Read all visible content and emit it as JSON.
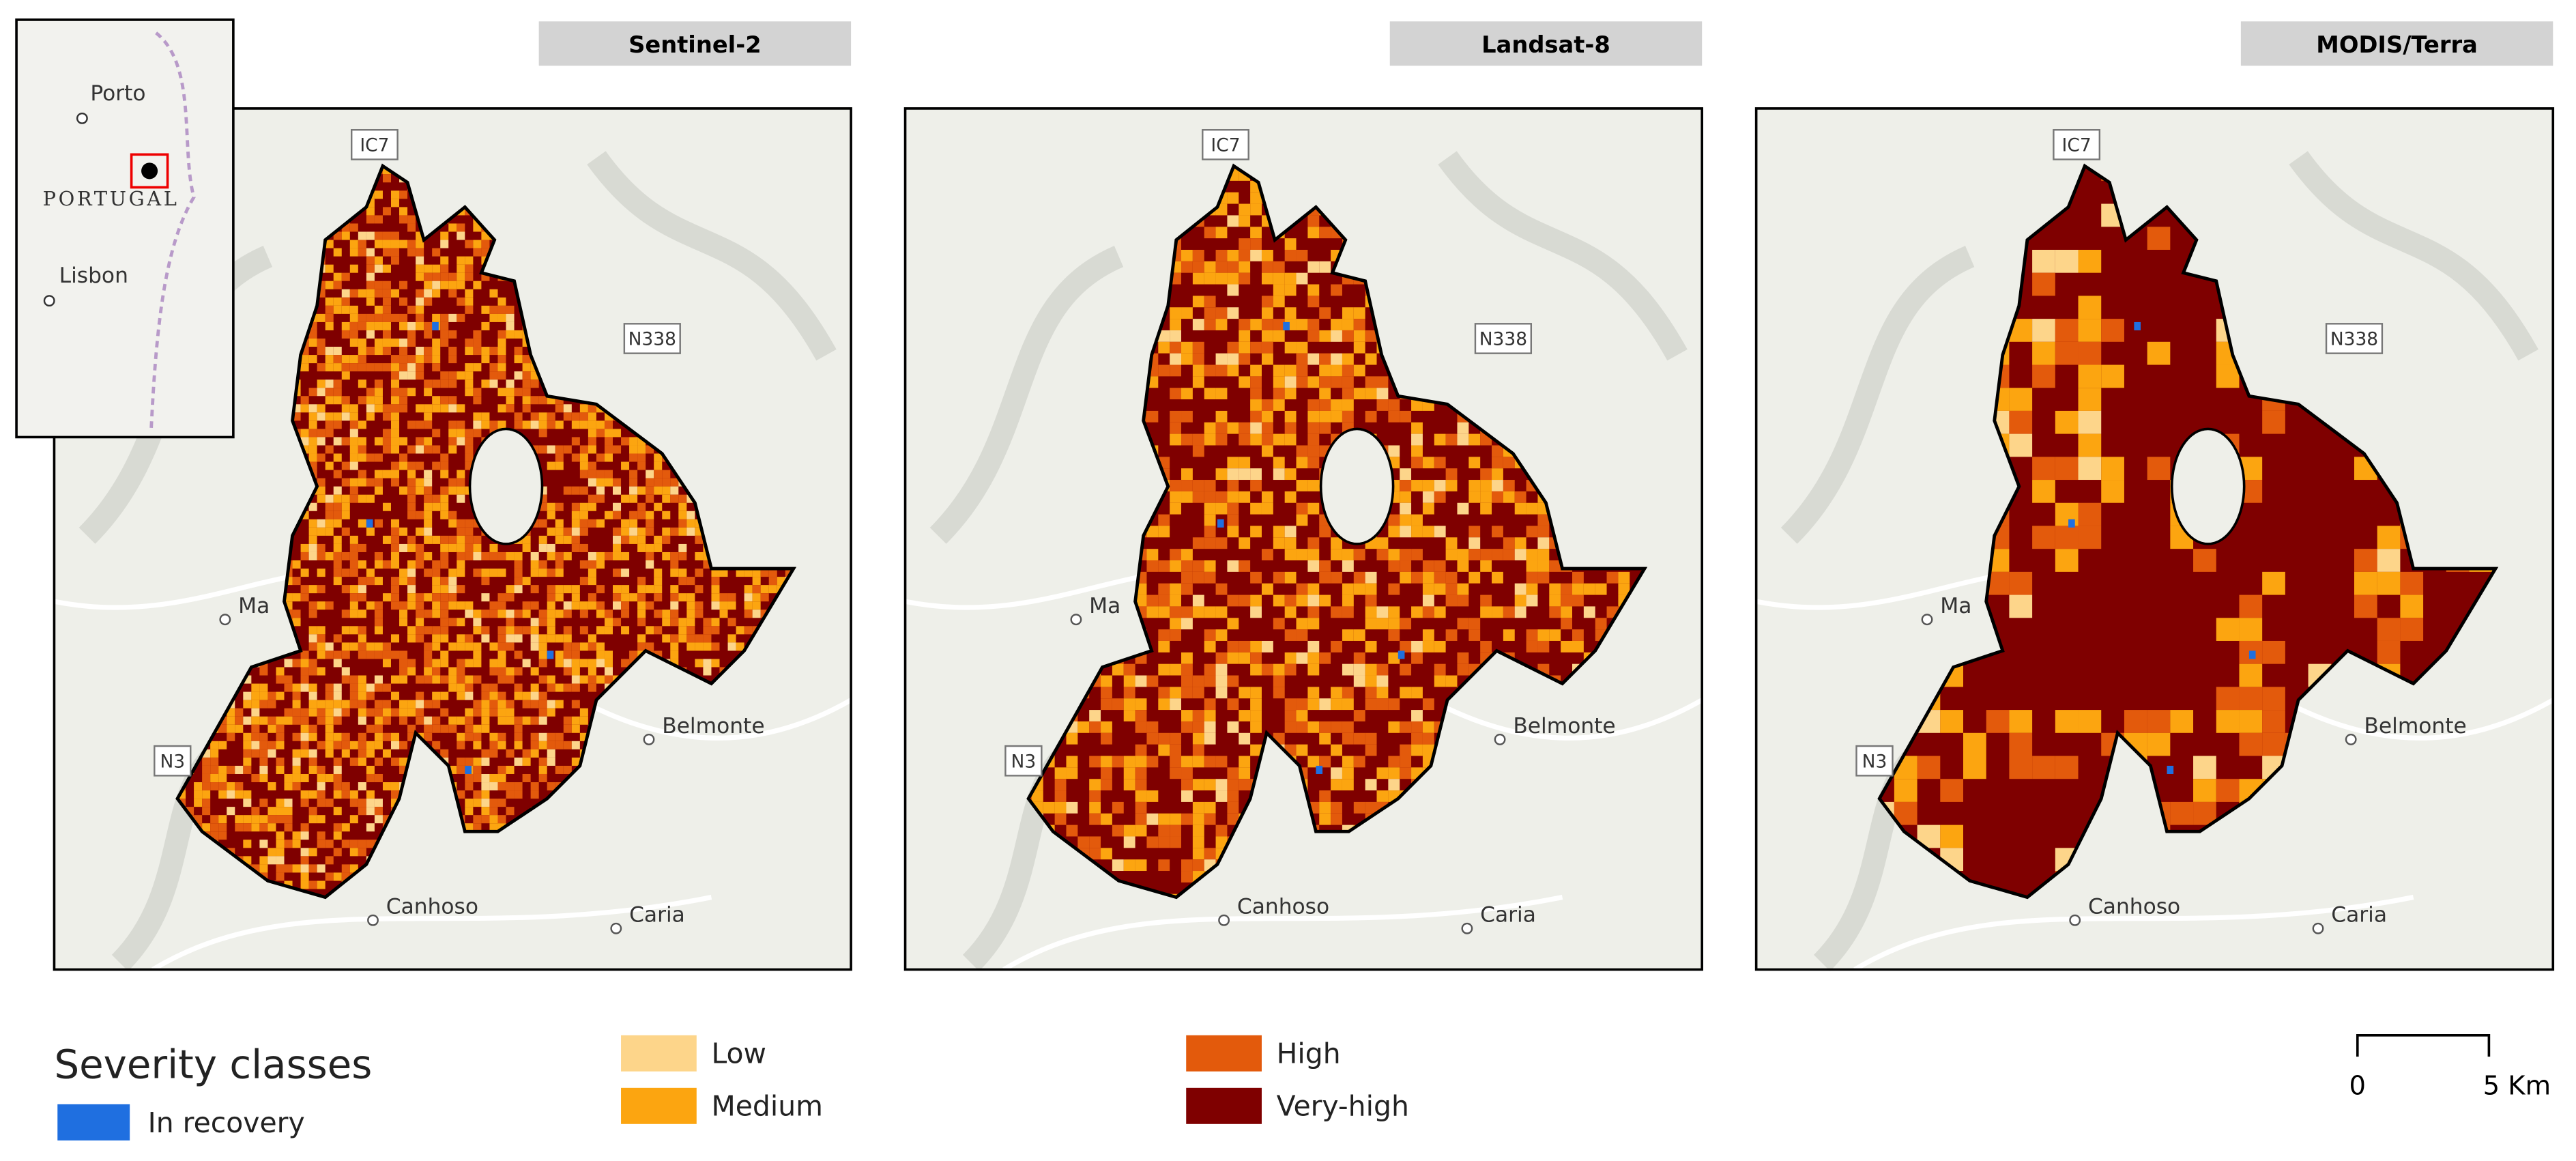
{
  "panels": [
    {
      "title": "Sentinel-2"
    },
    {
      "title": "Landsat-8"
    },
    {
      "title": "MODIS/Terra"
    }
  ],
  "place_labels": [
    "Ma",
    "Belmonte",
    "Canhoso",
    "Caria"
  ],
  "road_labels": [
    "IC7",
    "N338",
    "N3"
  ],
  "inset": {
    "cities": [
      "Porto",
      "Lisbon"
    ],
    "country": "PORTUGAL"
  },
  "legend": {
    "title": "Severity classes",
    "classes": [
      {
        "name": "In recovery",
        "color": "#1f6fe0"
      },
      {
        "name": "Low",
        "color": "#fdd58a"
      },
      {
        "name": "Medium",
        "color": "#fca510"
      },
      {
        "name": "High",
        "color": "#e35a0c"
      },
      {
        "name": "Very-high",
        "color": "#7f0000"
      }
    ]
  },
  "scale_bar": {
    "labels": [
      "0",
      "5 Km"
    ]
  }
}
